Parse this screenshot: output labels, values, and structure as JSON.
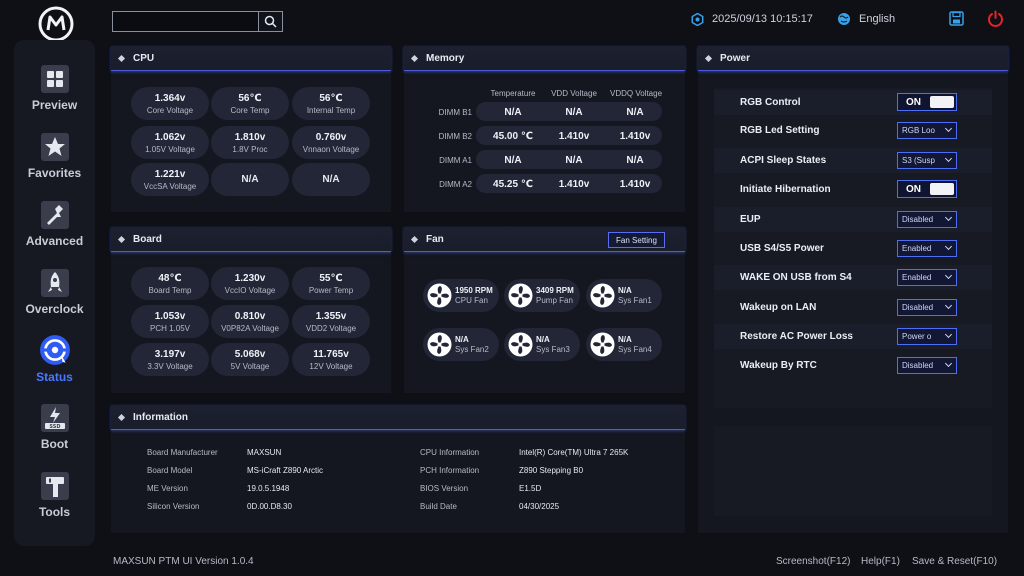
{
  "topbar": {
    "search_placeholder": "",
    "datetime": "2025/09/13 10:15:17",
    "language": "English"
  },
  "sidebar": {
    "items": [
      {
        "label": "Preview",
        "icon": "grid-icon"
      },
      {
        "label": "Favorites",
        "icon": "star-icon"
      },
      {
        "label": "Advanced",
        "icon": "wrench-icon"
      },
      {
        "label": "Overclock",
        "icon": "rocket-icon"
      },
      {
        "label": "Status",
        "icon": "gauge-icon",
        "active": true
      },
      {
        "label": "Boot",
        "icon": "ssd-icon"
      },
      {
        "label": "Tools",
        "icon": "hammer-icon"
      }
    ]
  },
  "cpu": {
    "title": "CPU",
    "cells": [
      {
        "value": "1.364v",
        "label": "Core Voltage"
      },
      {
        "value": "56℃",
        "label": "Core Temp"
      },
      {
        "value": "56℃",
        "label": "Internal Temp"
      },
      {
        "value": "1.062v",
        "label": "1.05V Voltage"
      },
      {
        "value": "1.810v",
        "label": "1.8V Proc"
      },
      {
        "value": "0.760v",
        "label": "Vnnaon Voltage"
      },
      {
        "value": "1.221v",
        "label": "VccSA Voltage"
      },
      {
        "value": "N/A",
        "label": ""
      },
      {
        "value": "N/A",
        "label": ""
      }
    ]
  },
  "memory": {
    "title": "Memory",
    "columns": [
      "Temperature",
      "VDD Voltage",
      "VDDQ Voltage"
    ],
    "rows": [
      {
        "name": "DIMM B1",
        "values": [
          "N/A",
          "N/A",
          "N/A"
        ]
      },
      {
        "name": "DIMM B2",
        "values": [
          "45.00 ℃",
          "1.410v",
          "1.410v"
        ]
      },
      {
        "name": "DIMM A1",
        "values": [
          "N/A",
          "N/A",
          "N/A"
        ]
      },
      {
        "name": "DIMM A2",
        "values": [
          "45.25 ℃",
          "1.410v",
          "1.410v"
        ]
      }
    ]
  },
  "board": {
    "title": "Board",
    "cells": [
      {
        "value": "48℃",
        "label": "Board Temp"
      },
      {
        "value": "1.230v",
        "label": "VccIO Voltage"
      },
      {
        "value": "55℃",
        "label": "Power Temp"
      },
      {
        "value": "1.053v",
        "label": "PCH 1.05V"
      },
      {
        "value": "0.810v",
        "label": "V0P82A Voltage"
      },
      {
        "value": "1.355v",
        "label": "VDD2 Voltage"
      },
      {
        "value": "3.197v",
        "label": "3.3V Voltage"
      },
      {
        "value": "5.068v",
        "label": "5V Voltage"
      },
      {
        "value": "11.765v",
        "label": "12V Voltage"
      }
    ]
  },
  "fan": {
    "title": "Fan",
    "setting_label": "Fan Setting",
    "fans": [
      {
        "value": "1950 RPM",
        "label": "CPU Fan"
      },
      {
        "value": "3409 RPM",
        "label": "Pump Fan"
      },
      {
        "value": "N/A",
        "label": "Sys Fan1"
      },
      {
        "value": "N/A",
        "label": "Sys Fan2"
      },
      {
        "value": "N/A",
        "label": "Sys Fan3"
      },
      {
        "value": "N/A",
        "label": "Sys Fan4"
      }
    ]
  },
  "information": {
    "title": "Information",
    "left": [
      {
        "label": "Board Manufacturer",
        "value": "MAXSUN"
      },
      {
        "label": "Board Model",
        "value": "MS-iCraft Z890 Arctic"
      },
      {
        "label": "ME Version",
        "value": "19.0.5.1948"
      },
      {
        "label": "Silicon Version",
        "value": "0D.00.D8.30"
      }
    ],
    "right": [
      {
        "label": "CPU Information",
        "value": "Intel(R) Core(TM) Ultra 7 265K"
      },
      {
        "label": "PCH Information",
        "value": "Z890 Stepping B0"
      },
      {
        "label": "BIOS Version",
        "value": "E1.5D"
      },
      {
        "label": "Build Date",
        "value": "04/30/2025"
      }
    ]
  },
  "power": {
    "title": "Power",
    "rows": [
      {
        "label": "RGB Control",
        "type": "toggle",
        "value": "ON"
      },
      {
        "label": "RGB Led Setting",
        "type": "select",
        "value": "RGB Loo"
      },
      {
        "label": "ACPI Sleep States",
        "type": "select",
        "value": "S3 (Susp"
      },
      {
        "label": "Initiate Hibernation",
        "type": "toggle",
        "value": "ON"
      },
      {
        "label": "EUP",
        "type": "select",
        "value": "Disabled"
      },
      {
        "label": "USB S4/S5 Power",
        "type": "select",
        "value": "Enabled"
      },
      {
        "label": "WAKE ON USB from S4",
        "type": "select",
        "value": "Enabled"
      },
      {
        "label": "Wakeup on LAN",
        "type": "select",
        "value": "Disabled"
      },
      {
        "label": "Restore AC Power Loss",
        "type": "select",
        "value": "Power o"
      },
      {
        "label": "Wakeup By RTC",
        "type": "select",
        "value": "Disabled"
      }
    ]
  },
  "footer": {
    "version": "MAXSUN PTM UI Version 1.0.4",
    "screenshot": "Screenshot(F12)",
    "help": "Help(F1)",
    "save_reset": "Save & Reset(F10)"
  },
  "colors": {
    "accent": "#4d6ef5",
    "active_nav": "#4b78ff",
    "power_icon": "#e0262b",
    "save_icon": "#3aa0e8"
  }
}
